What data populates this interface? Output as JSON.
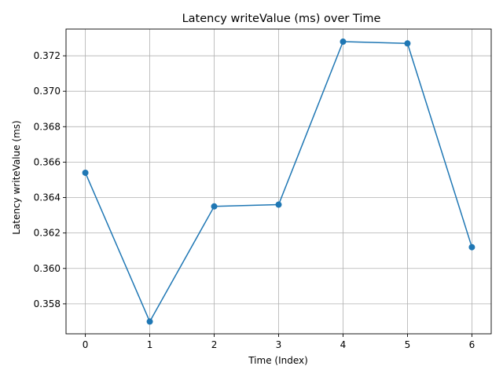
{
  "chart_data": {
    "type": "line",
    "title": "Latency writeValue (ms) over Time",
    "xlabel": "Time (Index)",
    "ylabel": "Latency writeValue (ms)",
    "x": [
      0,
      1,
      2,
      3,
      4,
      5,
      6
    ],
    "xlim": [
      -0.3,
      6.3
    ],
    "ylim": [
      0.35631,
      0.37351
    ],
    "xticks": [
      0,
      1,
      2,
      3,
      4,
      5,
      6
    ],
    "yticks": [
      0.358,
      0.36,
      0.362,
      0.364,
      0.366,
      0.368,
      0.37,
      0.372
    ],
    "ytick_labels": [
      "0.358",
      "0.360",
      "0.362",
      "0.364",
      "0.366",
      "0.368",
      "0.370",
      "0.372"
    ],
    "grid": true,
    "series": [
      {
        "values": [
          0.3654,
          0.357,
          0.3635,
          0.3636,
          0.3728,
          0.3727,
          0.3612
        ],
        "color": "#1f77b4",
        "marker": "circle"
      }
    ]
  }
}
